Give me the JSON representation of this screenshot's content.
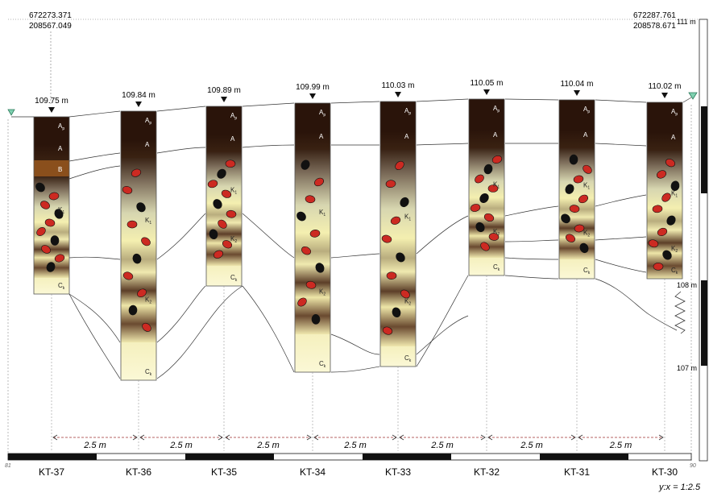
{
  "coords": {
    "left": {
      "e": "672273.371",
      "n": "208567.049"
    },
    "right": {
      "e": "672287.761",
      "n": "208578.671"
    }
  },
  "elevation_scale": [
    {
      "label": "111 m",
      "value": 111
    },
    {
      "label": "108 m",
      "value": 108
    },
    {
      "label": "107 m",
      "value": 107
    }
  ],
  "spacing_label": "2.5 m",
  "ratio_label": "y:x = 1:2.5",
  "section_ends": {
    "left": "81",
    "right": "90"
  },
  "colors": {
    "horizon_a": "#2a140a",
    "horizon_b": "#8a4f1c",
    "horizon_k_light": "#f4efb0",
    "horizon_c": "#f9f6c8",
    "concretion_red": "#cc2a22",
    "concretion_black": "#111111",
    "survey_marker": "#3aa07a"
  },
  "profiles": [
    {
      "id": "KT-37",
      "elevation": "109.75 m",
      "horizons": [
        "Ap",
        "A",
        "B",
        "K1",
        "Ck"
      ]
    },
    {
      "id": "KT-36",
      "elevation": "109.84 m",
      "horizons": [
        "Ap",
        "A",
        "K1",
        "K2",
        "Ck"
      ]
    },
    {
      "id": "KT-35",
      "elevation": "109.89 m",
      "horizons": [
        "Ap",
        "A",
        "K1",
        "K2",
        "Ck"
      ]
    },
    {
      "id": "KT-34",
      "elevation": "109.99 m",
      "horizons": [
        "Ap",
        "A",
        "K1",
        "K2",
        "Ck"
      ]
    },
    {
      "id": "KT-33",
      "elevation": "110.03 m",
      "horizons": [
        "Ap",
        "A",
        "K1",
        "K2",
        "Ck"
      ]
    },
    {
      "id": "KT-32",
      "elevation": "110.05 m",
      "horizons": [
        "Ap",
        "A",
        "K1",
        "K2",
        "Ck"
      ]
    },
    {
      "id": "KT-31",
      "elevation": "110.04 m",
      "horizons": [
        "Ap",
        "A",
        "K1",
        "K2",
        "Ck"
      ]
    },
    {
      "id": "KT-30",
      "elevation": "110.02 m",
      "horizons": [
        "Ap",
        "A",
        "K1",
        "K2",
        "Ck"
      ]
    }
  ]
}
